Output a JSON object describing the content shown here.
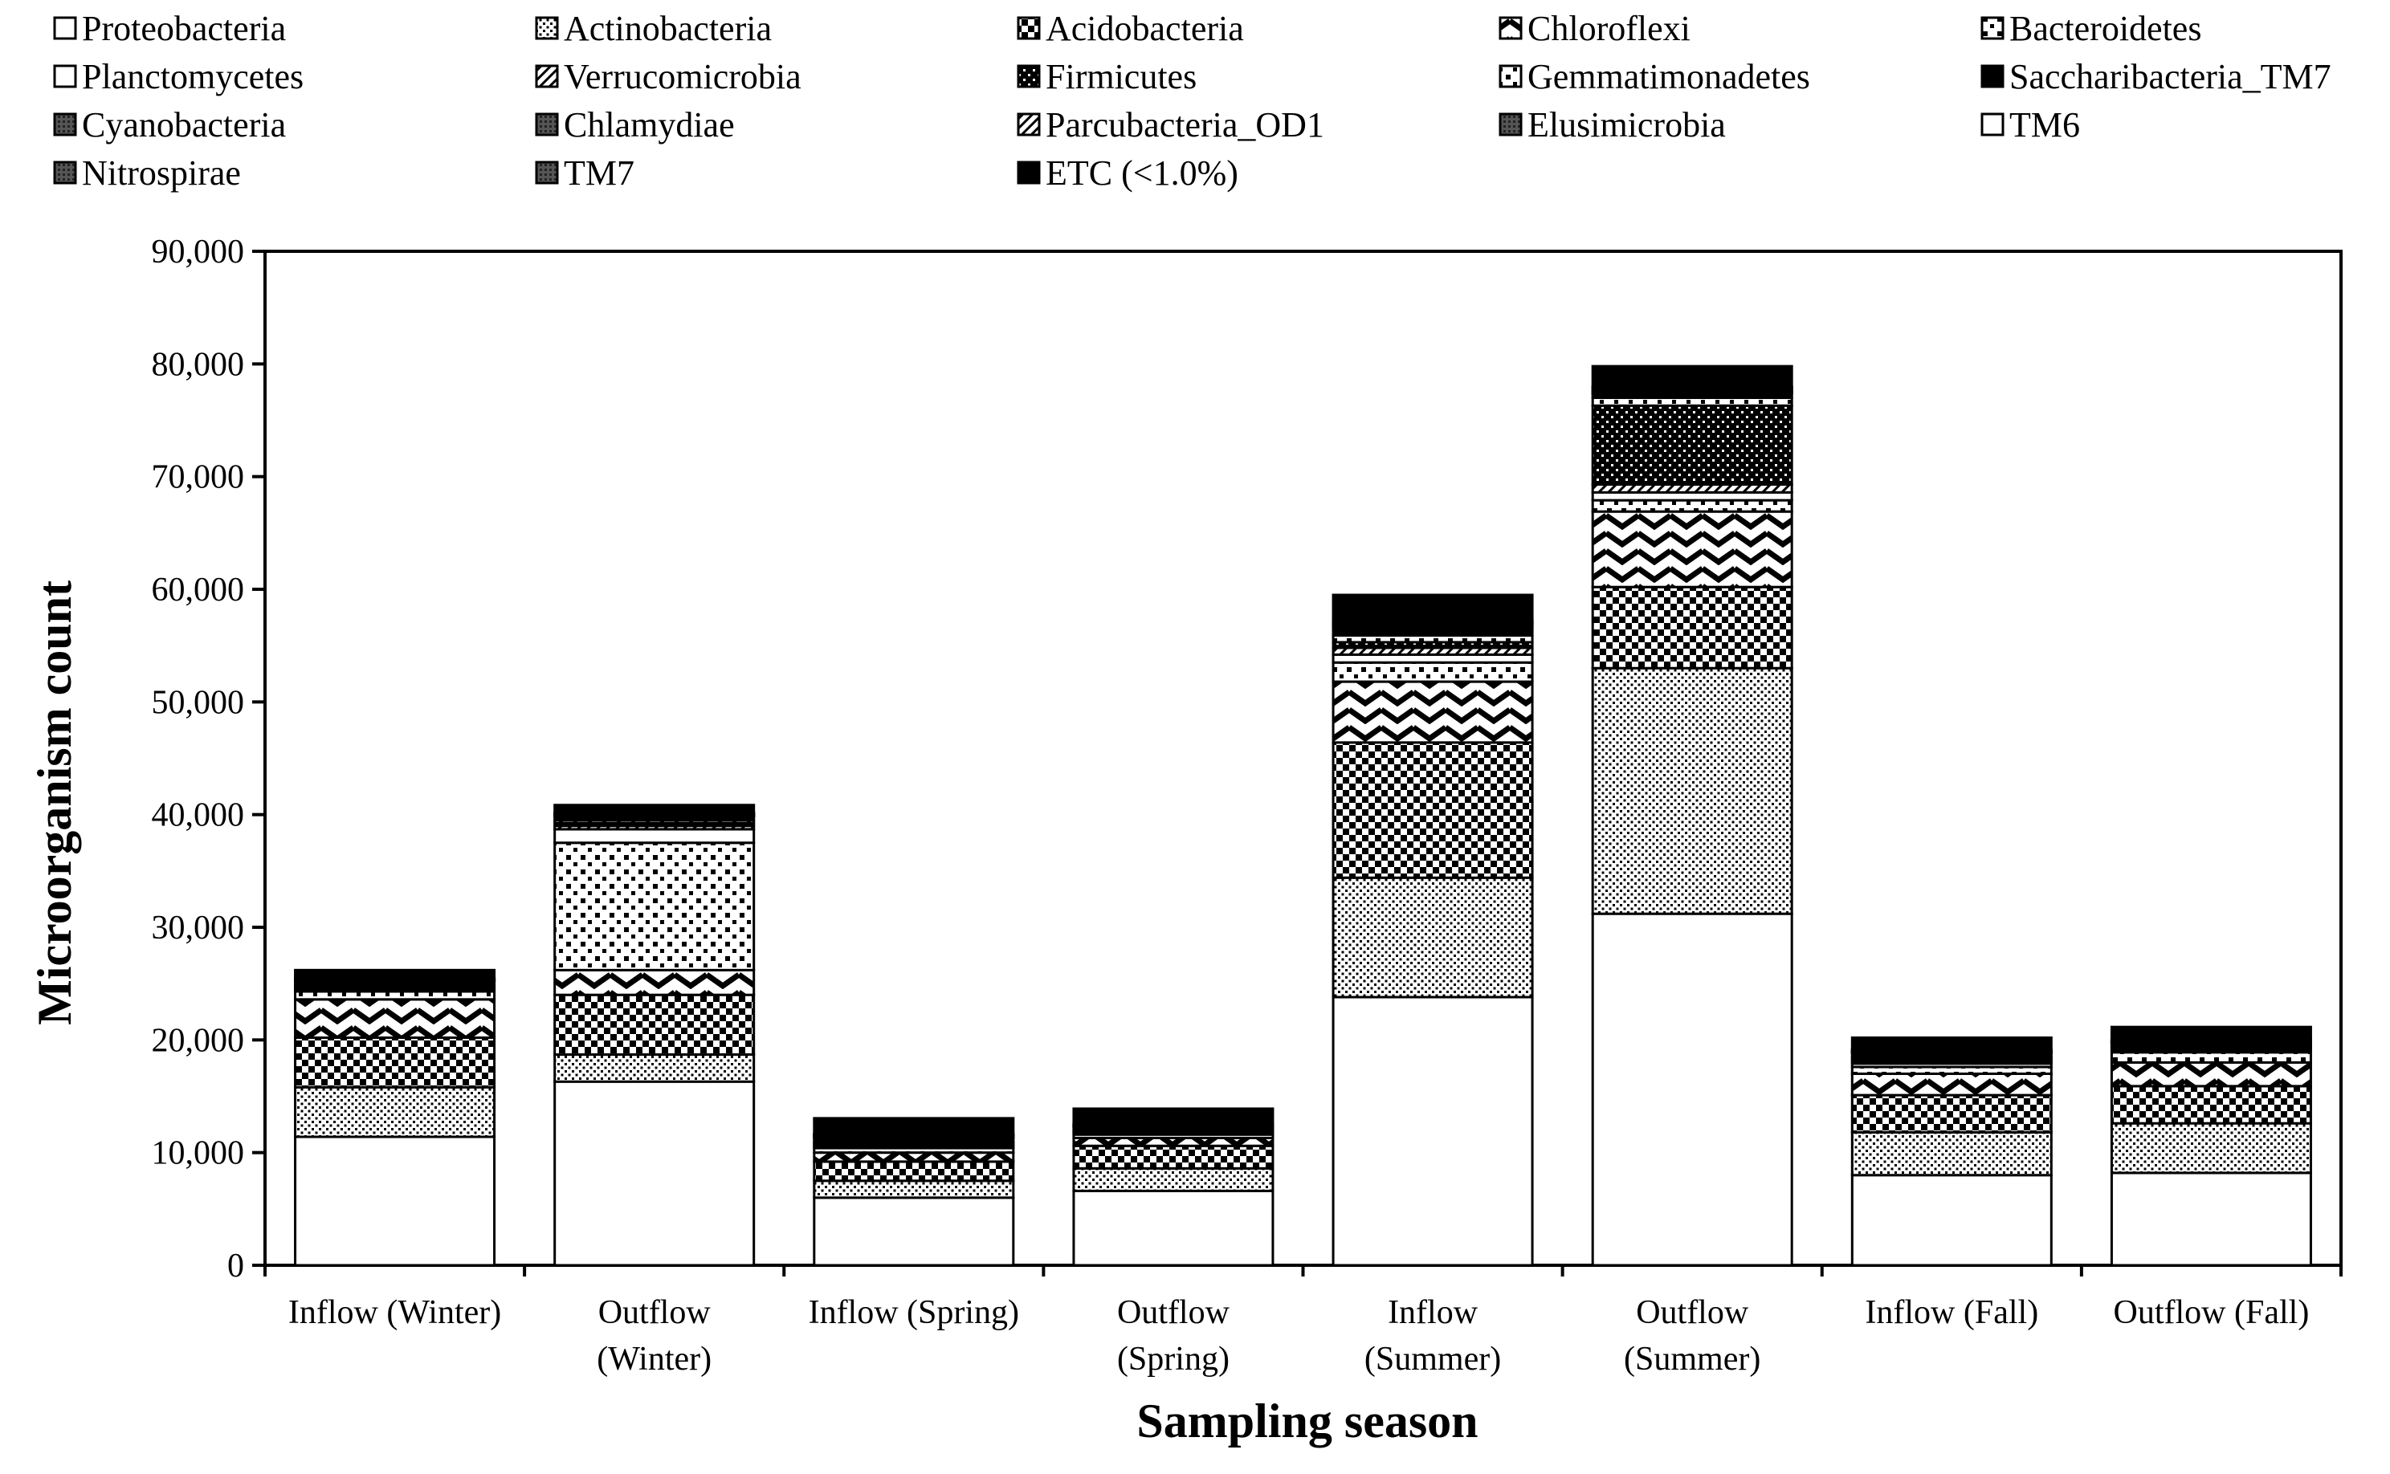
{
  "chart_data": {
    "type": "bar",
    "stacked": true,
    "title": "",
    "xlabel": "Sampling season",
    "ylabel": "Microorganism count",
    "ylim": [
      0,
      90000
    ],
    "yticks": [
      0,
      10000,
      20000,
      30000,
      40000,
      50000,
      60000,
      70000,
      80000,
      90000
    ],
    "ytick_labels": [
      "0",
      "10,000",
      "20,000",
      "30,000",
      "40,000",
      "50,000",
      "60,000",
      "70,000",
      "80,000",
      "90,000"
    ],
    "categories": [
      [
        "Inflow (Winter)"
      ],
      [
        "Outflow",
        "(Winter)"
      ],
      [
        "Inflow (Spring)"
      ],
      [
        "Outflow",
        "(Spring)"
      ],
      [
        "Inflow",
        "(Summer)"
      ],
      [
        "Outflow",
        "(Summer)"
      ],
      [
        "Inflow (Fall)"
      ],
      [
        "Outflow (Fall)"
      ]
    ],
    "legend_position": "top",
    "series": [
      {
        "name": "Proteobacteria",
        "pattern": "white",
        "values": [
          11400,
          16300,
          6000,
          6600,
          23800,
          31200,
          8000,
          8200
        ]
      },
      {
        "name": "Actinobacteria",
        "pattern": "fine-dots",
        "values": [
          4400,
          2400,
          1500,
          2000,
          10600,
          21800,
          3800,
          4400
        ]
      },
      {
        "name": "Acidobacteria",
        "pattern": "checker",
        "values": [
          4400,
          5300,
          1700,
          2000,
          12000,
          7200,
          3300,
          3300
        ]
      },
      {
        "name": "Chloroflexi",
        "pattern": "chevron",
        "values": [
          3400,
          2200,
          800,
          700,
          5400,
          6700,
          1900,
          2100
        ]
      },
      {
        "name": "Bacteroidetes",
        "pattern": "sparse-dots",
        "values": [
          700,
          11300,
          400,
          300,
          1700,
          1000,
          600,
          900
        ]
      },
      {
        "name": "Planctomycetes",
        "pattern": "white",
        "values": [
          150,
          1200,
          150,
          100,
          700,
          700,
          300,
          200
        ]
      },
      {
        "name": "Verrucomicrobia",
        "pattern": "diagonal",
        "values": [
          150,
          300,
          150,
          100,
          600,
          700,
          200,
          200
        ]
      },
      {
        "name": "Firmicutes",
        "pattern": "dense-dots",
        "values": [
          100,
          250,
          150,
          100,
          500,
          7000,
          200,
          100
        ]
      },
      {
        "name": "Gemmatimonadetes",
        "pattern": "sparse-dots",
        "values": [
          150,
          250,
          150,
          100,
          600,
          700,
          200,
          200
        ]
      },
      {
        "name": "Saccharibacteria_TM7",
        "pattern": "black",
        "values": [
          300,
          300,
          300,
          200,
          500,
          300,
          300,
          100
        ]
      },
      {
        "name": "Cyanobacteria",
        "pattern": "dark",
        "values": [
          50,
          50,
          50,
          50,
          200,
          100,
          50,
          50
        ]
      },
      {
        "name": "Chlamydiae",
        "pattern": "dark",
        "values": [
          50,
          50,
          50,
          50,
          150,
          100,
          50,
          50
        ]
      },
      {
        "name": "Parcubacteria_OD1",
        "pattern": "diagonal",
        "values": [
          50,
          50,
          50,
          50,
          150,
          100,
          50,
          50
        ]
      },
      {
        "name": "Elusimicrobia",
        "pattern": "dark",
        "values": [
          50,
          50,
          50,
          50,
          100,
          100,
          50,
          50
        ]
      },
      {
        "name": "TM6",
        "pattern": "white",
        "values": [
          50,
          50,
          50,
          50,
          100,
          100,
          50,
          50
        ]
      },
      {
        "name": "Nitrospirae",
        "pattern": "dark",
        "values": [
          50,
          50,
          50,
          50,
          100,
          100,
          50,
          50
        ]
      },
      {
        "name": "TM7",
        "pattern": "dark",
        "values": [
          50,
          50,
          50,
          50,
          100,
          100,
          50,
          50
        ]
      },
      {
        "name": "ETC (<1.0%)",
        "pattern": "black",
        "values": [
          700,
          700,
          1400,
          1350,
          2200,
          1800,
          1050,
          1100
        ]
      }
    ]
  }
}
